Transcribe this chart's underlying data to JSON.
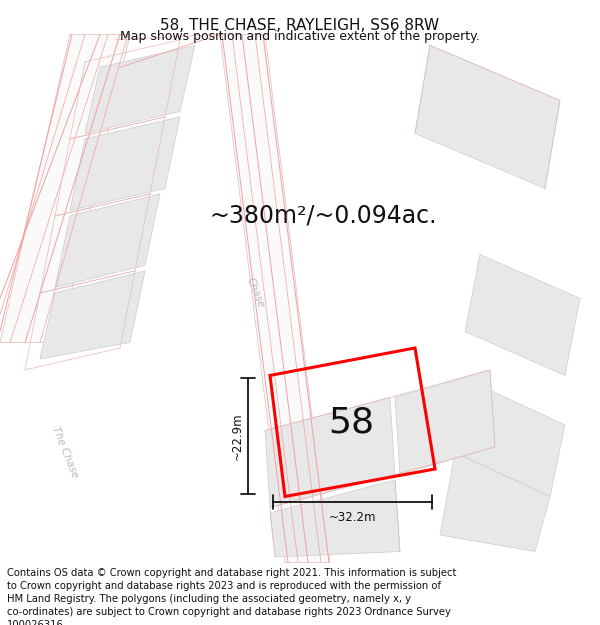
{
  "title": "58, THE CHASE, RAYLEIGH, SS6 8RW",
  "subtitle": "Map shows position and indicative extent of the property.",
  "area_text": "~380m²/~0.094ac.",
  "width_label": "~32.2m",
  "height_label": "~22.9m",
  "number_label": "58",
  "footer": "Contains OS data © Crown copyright and database right 2021. This information is subject to Crown copyright and database rights 2023 and is reproduced with the permission of HM Land Registry. The polygons (including the associated geometry, namely x, y co-ordinates) are subject to Crown copyright and database rights 2023 Ordnance Survey 100026316.",
  "bg_color": "#ffffff",
  "map_bg": "#ffffff",
  "road_color": "#f0a0a0",
  "road_color2": "#e8b8b8",
  "building_color": "#e8e8e8",
  "building_edge": "#cccccc",
  "highlight_color": "#ff0000",
  "street_label_color": "#bbbbbb",
  "title_fontsize": 11,
  "subtitle_fontsize": 9,
  "area_fontsize": 17,
  "number_fontsize": 26,
  "footer_fontsize": 7.2,
  "dim_fontsize": 8.5
}
